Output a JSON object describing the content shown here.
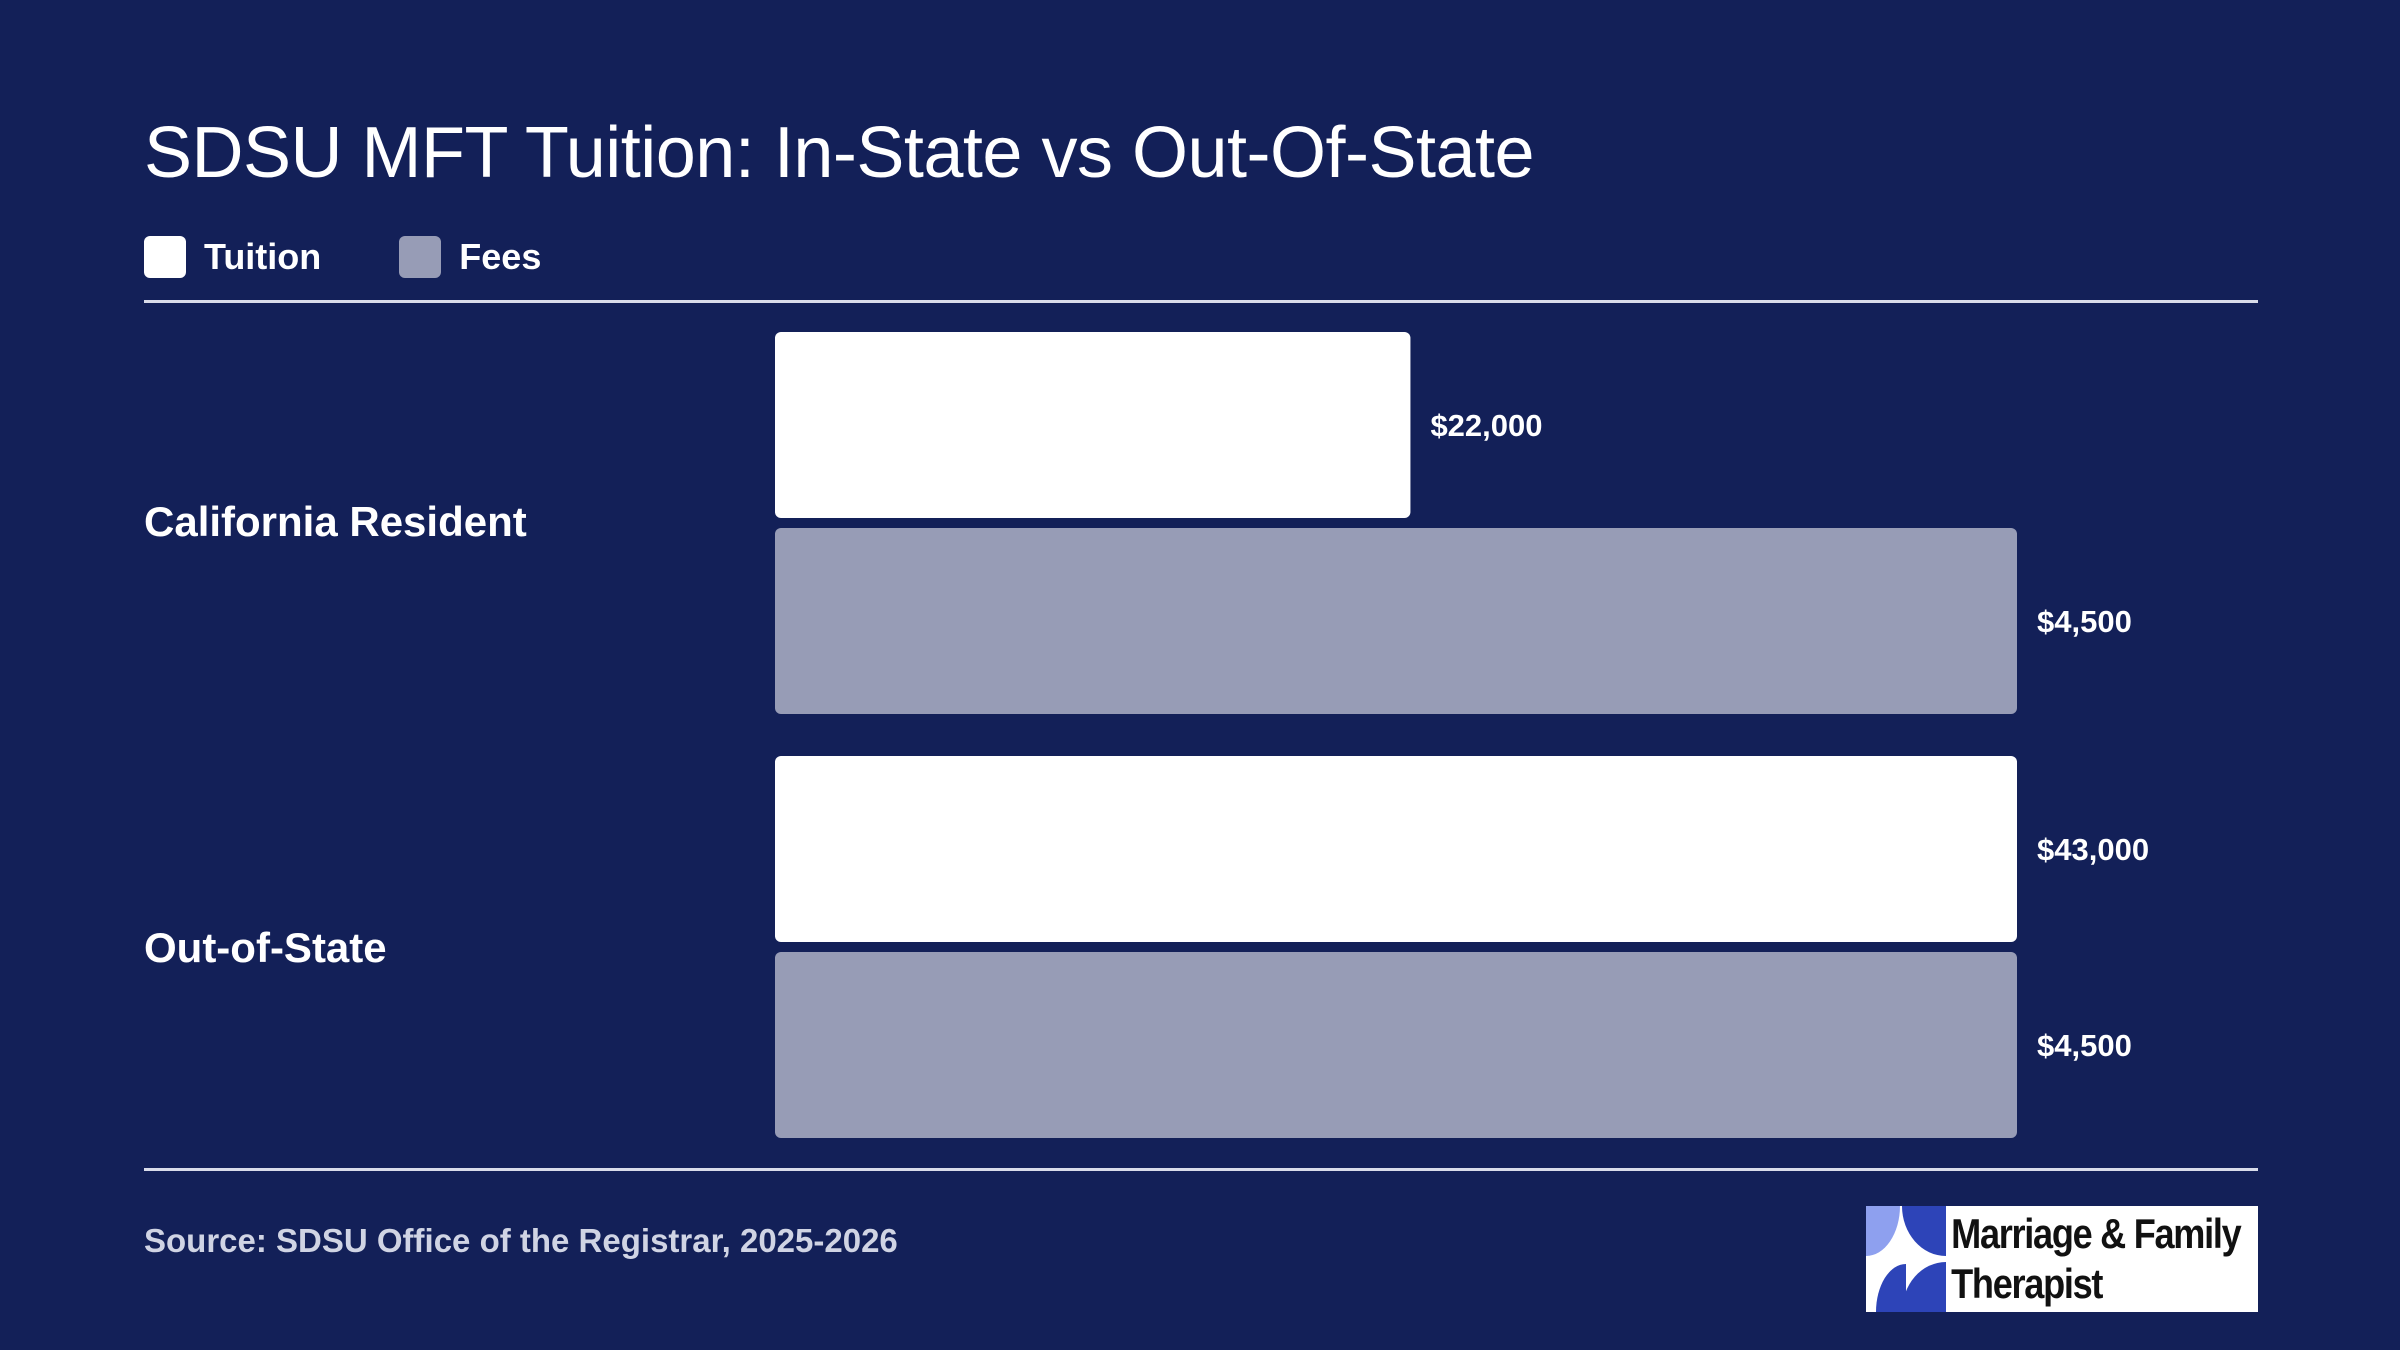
{
  "colors": {
    "background": "#132058",
    "tuition": "#ffffff",
    "fees": "#979cb6",
    "text": "#ffffff",
    "source_text": "#d0d4e4"
  },
  "chart_data": {
    "type": "bar",
    "orientation": "horizontal",
    "title": "SDSU MFT Tuition: In-State vs Out-Of-State",
    "categories": [
      "California Resident",
      "Out-of-State"
    ],
    "series": [
      {
        "name": "Tuition",
        "values": [
          22000,
          43000
        ],
        "labels": [
          "$22,000",
          "$43,000"
        ],
        "color": "#ffffff"
      },
      {
        "name": "Fees",
        "values": [
          4500,
          4500
        ],
        "labels": [
          "$4,500",
          "$4,500"
        ],
        "color": "#979cb6"
      }
    ],
    "per_series_max": [
      43000,
      4500
    ],
    "legend_position": "top-left",
    "grid": false
  },
  "source": "Source: SDSU Office of the Registrar, 2025-2026",
  "logo": {
    "line1": "Marriage & Family",
    "line2": "Therapist"
  }
}
